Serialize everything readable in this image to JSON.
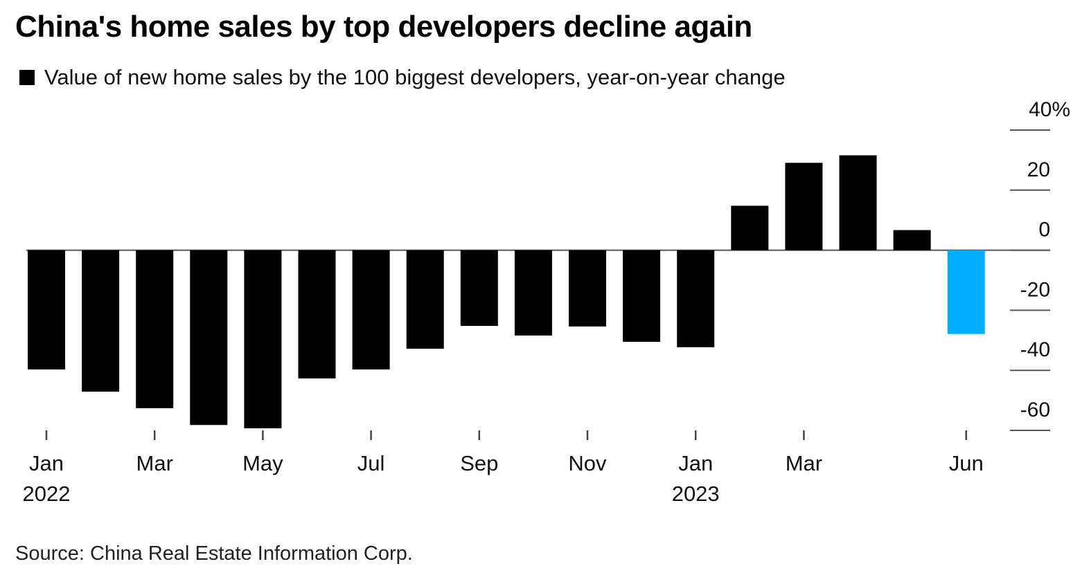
{
  "chart_data": {
    "type": "bar",
    "title": "China's home sales by top developers decline again",
    "legend": [
      {
        "label": "Value of new home sales by the 100 biggest developers, year-on-year change",
        "color": "#000000"
      }
    ],
    "legend_position": "top-left",
    "xlabel": "",
    "ylabel": "",
    "y_axis_position": "right",
    "ylim": [
      -60,
      40
    ],
    "y_ticks": [
      40,
      20,
      0,
      -20,
      -40,
      -60
    ],
    "y_tick_labels": [
      "40%",
      "20",
      "0",
      "-20",
      "-40",
      "-60"
    ],
    "categories": [
      "Jan 2022",
      "Feb 2022",
      "Mar 2022",
      "Apr 2022",
      "May 2022",
      "Jun 2022",
      "Jul 2022",
      "Aug 2022",
      "Sep 2022",
      "Oct 2022",
      "Nov 2022",
      "Dec 2022",
      "Jan 2023",
      "Feb 2023",
      "Mar 2023",
      "Apr 2023",
      "May 2023",
      "Jun 2023"
    ],
    "values": [
      -39.7,
      -47.1,
      -52.6,
      -58.2,
      -59.3,
      -42.7,
      -39.7,
      -32.8,
      -25.2,
      -28.4,
      -25.4,
      -30.5,
      -32.3,
      14.8,
      29.1,
      31.6,
      6.7,
      -27.9
    ],
    "colors": {
      "default": "#000000",
      "highlight": "#00aeff"
    },
    "highlight_index": 17,
    "x_ticks": [
      {
        "index": 0,
        "label": "Jan",
        "sublabel": "2022"
      },
      {
        "index": 2,
        "label": "Mar",
        "sublabel": ""
      },
      {
        "index": 4,
        "label": "May",
        "sublabel": ""
      },
      {
        "index": 6,
        "label": "Jul",
        "sublabel": ""
      },
      {
        "index": 8,
        "label": "Sep",
        "sublabel": ""
      },
      {
        "index": 10,
        "label": "Nov",
        "sublabel": ""
      },
      {
        "index": 12,
        "label": "Jan",
        "sublabel": "2023"
      },
      {
        "index": 14,
        "label": "Mar",
        "sublabel": ""
      },
      {
        "index": 17,
        "label": "Jun",
        "sublabel": ""
      }
    ],
    "grid": false,
    "source": "Source: China Real Estate Information Corp."
  }
}
